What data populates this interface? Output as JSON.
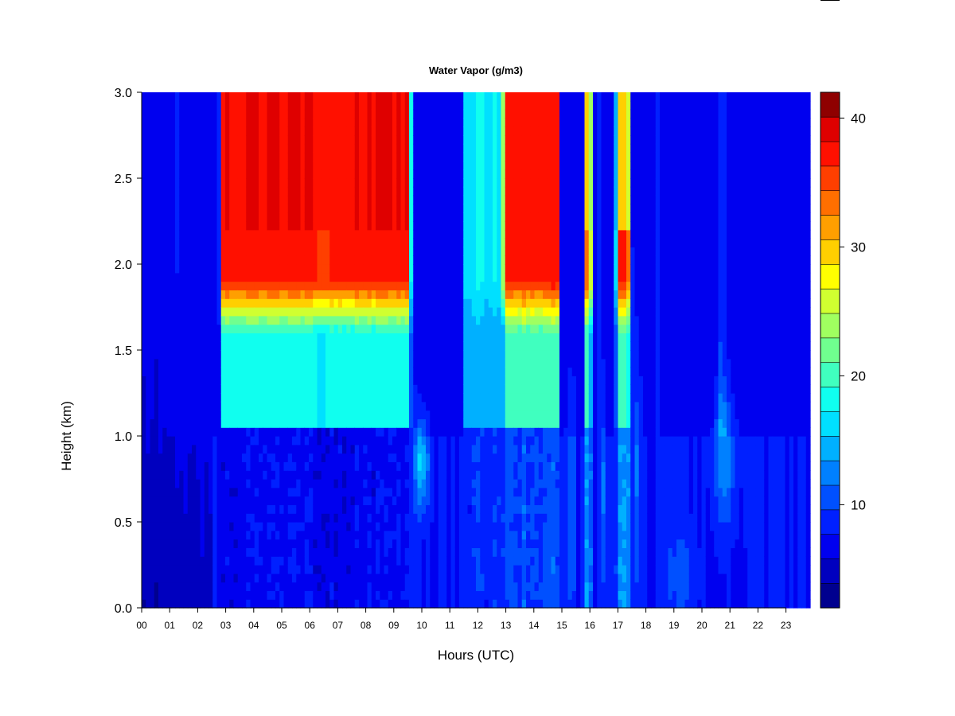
{
  "chart_data": {
    "type": "heatmap",
    "title": "Water Vapor (g/m3)",
    "xlabel": "Hours (UTC)",
    "ylabel": "Height (km)",
    "xlim": [
      0,
      23.85
    ],
    "ylim": [
      0,
      3.0
    ],
    "x_tick_labels": [
      "00",
      "01",
      "02",
      "03",
      "04",
      "05",
      "06",
      "07",
      "08",
      "09",
      "10",
      "11",
      "12",
      "13",
      "14",
      "15",
      "16",
      "17",
      "18",
      "19",
      "20",
      "21",
      "22",
      "23"
    ],
    "y_tick_labels": [
      "0.0",
      "0.5",
      "1.0",
      "1.5",
      "2.0",
      "2.5",
      "3.0"
    ],
    "colorbar": {
      "range": [
        2,
        42
      ],
      "tick_labels": [
        "10",
        "20",
        "30",
        "40"
      ],
      "tick_values": [
        10,
        20,
        30,
        40
      ],
      "levels": [
        2,
        4,
        6,
        8,
        10,
        12,
        14,
        16,
        18,
        20,
        22,
        24,
        26,
        28,
        30,
        32,
        34,
        36,
        38,
        40,
        42
      ],
      "colors": [
        "#00008f",
        "#0000bf",
        "#0000ef",
        "#0020ff",
        "#0050ff",
        "#0080ff",
        "#00b0ff",
        "#00e0ff",
        "#10ffef",
        "#40ffbf",
        "#70ff8f",
        "#a0ff60",
        "#d0ff30",
        "#ffff00",
        "#ffcf00",
        "#ff9f00",
        "#ff6f00",
        "#ff3f00",
        "#ff1000",
        "#df0000",
        "#8f0000"
      ]
    },
    "regimes": [
      {
        "hours": [
          2.75,
          9.65
        ],
        "upper_top": 38,
        "upper_low": 37,
        "mid": 18,
        "low": 6
      },
      {
        "hours": [
          11.45,
          12.85
        ],
        "upper_top": 17,
        "upper_low": 17,
        "mid": 14,
        "low": 8
      },
      {
        "hours": [
          12.85,
          14.95
        ],
        "upper_top": 37,
        "upper_low": 37,
        "mid": 20,
        "low": 9
      },
      {
        "hours": [
          15.75,
          16.1
        ],
        "upper_top": 30,
        "upper_low": 34,
        "mid": 19,
        "low": 12
      },
      {
        "hours": [
          16.9,
          17.45
        ],
        "upper_top": 30,
        "upper_low": 37,
        "mid": 20,
        "low": 12
      }
    ],
    "background": {
      "upper": 7,
      "mid": 8,
      "low": 8,
      "early_morning": 4
    }
  }
}
